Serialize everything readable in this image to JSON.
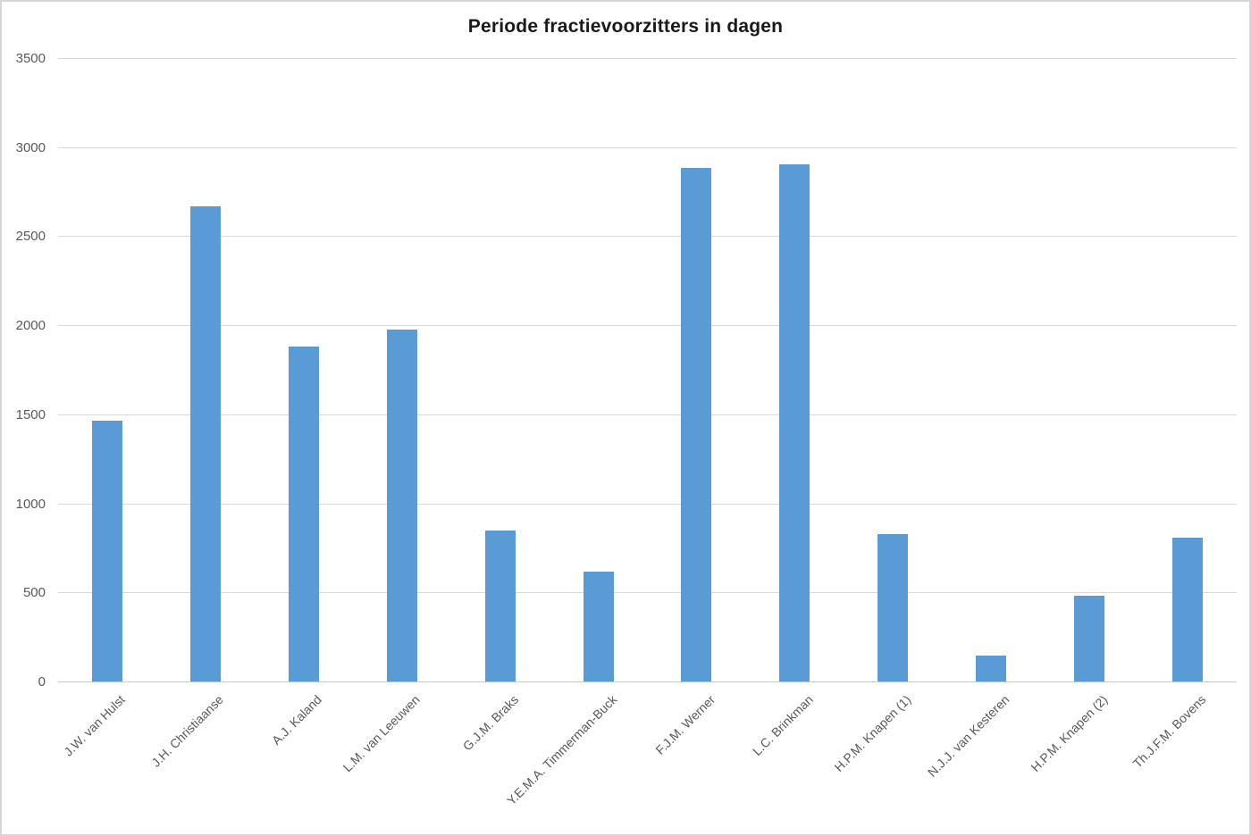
{
  "chart_data": {
    "type": "bar",
    "title": "Periode fractievoorzitters in dagen",
    "xlabel": "",
    "ylabel": "",
    "categories": [
      "J.W. van Hulst",
      "J.H. Christiaanse",
      "A.J. Kaland",
      "L.M. van Leeuwen",
      "G.J.M. Braks",
      "Y.E.M.A. Timmerman-Buck",
      "F.J.M. Werner",
      "L.C. Brinkman",
      "H.P.M. Knapen (1)",
      "N.J.J. van Kesteren",
      "H.P.M. Knapen (2)",
      "Th.J.F.M. Bovens"
    ],
    "values": [
      1465,
      2670,
      1880,
      1975,
      845,
      615,
      2885,
      2905,
      825,
      145,
      480,
      805
    ],
    "ylim": [
      0,
      3500
    ],
    "yticks": [
      0,
      500,
      1000,
      1500,
      2000,
      2500,
      3000,
      3500
    ],
    "grid": true,
    "legend": false,
    "colors": {
      "bar": "#5b9bd5",
      "gridline": "#d9d9d9",
      "axis_line": "#c9c9c9",
      "axis_text": "#595959",
      "title_text": "#1a1a1a",
      "frame_border": "#d6d6d6"
    }
  }
}
